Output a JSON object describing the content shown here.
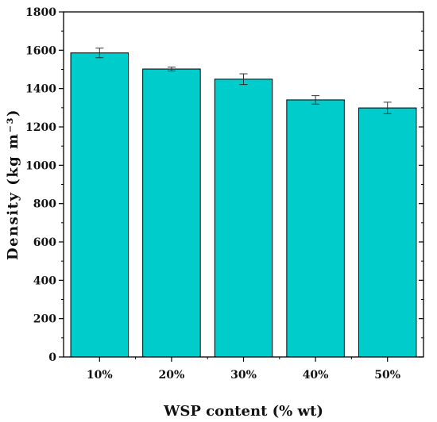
{
  "chart_data": {
    "type": "bar",
    "categories": [
      "10%",
      "20%",
      "30%",
      "40%",
      "50%"
    ],
    "values": [
      1586,
      1502,
      1449,
      1341,
      1299
    ],
    "errors": [
      25,
      10,
      28,
      22,
      30
    ],
    "title": "",
    "xlabel": "WSP content (% wt)",
    "ylabel": "Density (kg m⁻³)",
    "ylim": [
      0,
      1800
    ],
    "yticks": [
      0,
      200,
      400,
      600,
      800,
      1000,
      1200,
      1400,
      1600,
      1800
    ],
    "grid": false,
    "bar_color": "#00CCCC",
    "bar_edge_color": "#000000"
  }
}
